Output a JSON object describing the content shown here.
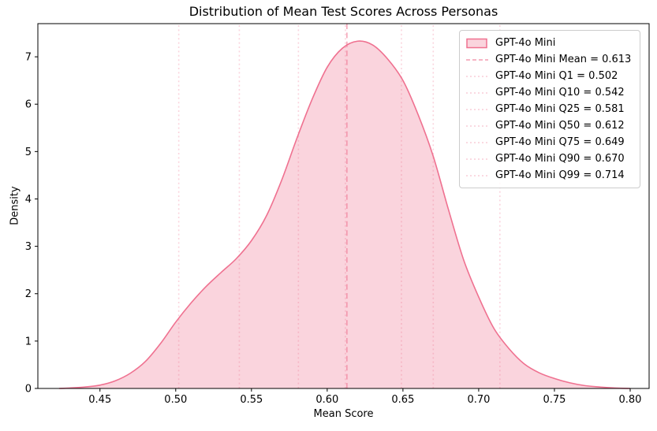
{
  "figure": {
    "title": "Distribution of Mean Test Scores Across Personas",
    "xlabel": "Mean Score",
    "ylabel": "Density"
  },
  "legend": {
    "items": [
      {
        "swatch": "patch",
        "label": "GPT-4o Mini"
      },
      {
        "swatch": "dashed",
        "label": "GPT-4o Mini Mean = 0.613"
      },
      {
        "swatch": "dotted",
        "label": "GPT-4o Mini Q1 = 0.502"
      },
      {
        "swatch": "dotted",
        "label": "GPT-4o Mini Q10 = 0.542"
      },
      {
        "swatch": "dotted",
        "label": "GPT-4o Mini Q25 = 0.581"
      },
      {
        "swatch": "dotted",
        "label": "GPT-4o Mini Q50 = 0.612"
      },
      {
        "swatch": "dotted",
        "label": "GPT-4o Mini Q75 = 0.649"
      },
      {
        "swatch": "dotted",
        "label": "GPT-4o Mini Q90 = 0.670"
      },
      {
        "swatch": "dotted",
        "label": "GPT-4o Mini Q99 = 0.714"
      }
    ]
  },
  "chart_data": {
    "type": "area",
    "subtype": "kde-density",
    "title": "Distribution of Mean Test Scores Across Personas",
    "xlabel": "Mean Score",
    "ylabel": "Density",
    "xlim": [
      0.409,
      0.8125
    ],
    "ylim": [
      0,
      7.7
    ],
    "xticks": [
      0.45,
      0.5,
      0.55,
      0.6,
      0.65,
      0.7,
      0.75,
      0.8
    ],
    "yticks": [
      0,
      1,
      2,
      3,
      4,
      5,
      6,
      7
    ],
    "grid": false,
    "legend_position": "upper right",
    "series": [
      {
        "name": "GPT-4o Mini",
        "x": [
          0.423,
          0.43,
          0.44,
          0.45,
          0.46,
          0.47,
          0.48,
          0.49,
          0.5,
          0.51,
          0.52,
          0.53,
          0.54,
          0.55,
          0.56,
          0.57,
          0.58,
          0.59,
          0.6,
          0.61,
          0.62,
          0.63,
          0.64,
          0.65,
          0.66,
          0.67,
          0.68,
          0.69,
          0.7,
          0.71,
          0.72,
          0.73,
          0.74,
          0.75,
          0.76,
          0.77,
          0.78,
          0.79,
          0.8
        ],
        "density": [
          0.0,
          0.01,
          0.03,
          0.07,
          0.16,
          0.32,
          0.57,
          0.95,
          1.4,
          1.8,
          2.15,
          2.45,
          2.74,
          3.12,
          3.65,
          4.4,
          5.28,
          6.1,
          6.78,
          7.18,
          7.33,
          7.25,
          6.95,
          6.5,
          5.78,
          4.9,
          3.78,
          2.72,
          1.93,
          1.27,
          0.84,
          0.52,
          0.33,
          0.21,
          0.12,
          0.06,
          0.03,
          0.01,
          0.0
        ],
        "mean": 0.613,
        "quantiles": {
          "Q1": 0.502,
          "Q10": 0.542,
          "Q25": 0.581,
          "Q50": 0.612,
          "Q75": 0.649,
          "Q90": 0.67,
          "Q99": 0.714
        }
      }
    ],
    "colors": {
      "line": "#ef7190",
      "fill": "rgba(239,113,144,0.30)",
      "mean_line": "rgba(239,113,144,0.60)",
      "quantile_line": "rgba(239,113,144,0.30)",
      "axis": "#000000",
      "legend_border": "#cccccc"
    }
  }
}
